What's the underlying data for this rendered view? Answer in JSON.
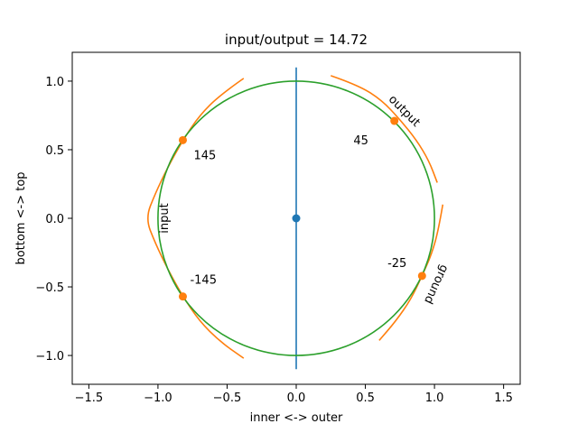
{
  "chart_data": {
    "type": "line",
    "title": "input/output =  14.72",
    "xlabel": "inner <-> outer",
    "ylabel": "bottom <-> top",
    "xlim": [
      -1.62,
      1.62
    ],
    "ylim": [
      -1.21,
      1.21
    ],
    "xticks": [
      -1.5,
      -1.0,
      -0.5,
      0.0,
      0.5,
      1.0,
      1.5
    ],
    "xtick_labels": [
      "−1.5",
      "−1.0",
      "−0.5",
      "0.0",
      "0.5",
      "1.0",
      "1.5"
    ],
    "yticks": [
      -1.0,
      -0.5,
      0.0,
      0.5,
      1.0
    ],
    "ytick_labels": [
      "−1.0",
      "−0.5",
      "0.0",
      "0.5",
      "1.0"
    ],
    "grid": false,
    "colors": {
      "axis_line": "#1f77b4",
      "center_point": "#1f77b4",
      "arcs": "#ff7f0e",
      "markers": "#ff7f0e",
      "circle": "#2ca02c"
    },
    "vertical_line": {
      "x": 0.0,
      "y": [
        -1.1,
        1.1
      ]
    },
    "center_point": {
      "x": 0.0,
      "y": 0.0
    },
    "circle": {
      "cx": 0.0,
      "cy": 0.0,
      "r": 1.0
    },
    "markers": [
      {
        "x": 0.71,
        "y": 0.71,
        "angle": 45,
        "label": "45"
      },
      {
        "x": -0.82,
        "y": 0.57,
        "angle": 145,
        "label": "145"
      },
      {
        "x": -0.82,
        "y": -0.57,
        "angle": -145,
        "label": "-145"
      },
      {
        "x": 0.91,
        "y": -0.42,
        "angle": -25,
        "label": "-25"
      }
    ],
    "arcs": [
      {
        "points": [
          [
            0.25,
            1.04
          ],
          [
            0.45,
            0.97
          ],
          [
            0.62,
            0.86
          ],
          [
            0.75,
            0.72
          ],
          [
            0.87,
            0.57
          ],
          [
            0.96,
            0.42
          ],
          [
            1.02,
            0.26
          ]
        ]
      },
      {
        "points": [
          [
            -0.38,
            1.02
          ],
          [
            -0.55,
            0.9
          ],
          [
            -0.7,
            0.75
          ],
          [
            -0.82,
            0.57
          ],
          [
            -0.93,
            0.37
          ],
          [
            -1.02,
            0.18
          ],
          [
            -1.09,
            0.0
          ],
          [
            -1.02,
            -0.18
          ],
          [
            -0.93,
            -0.37
          ],
          [
            -0.82,
            -0.57
          ],
          [
            -0.7,
            -0.75
          ],
          [
            -0.55,
            -0.9
          ],
          [
            -0.38,
            -1.02
          ]
        ]
      },
      {
        "points": [
          [
            1.06,
            0.1
          ],
          [
            1.03,
            -0.08
          ],
          [
            0.98,
            -0.26
          ],
          [
            0.91,
            -0.42
          ],
          [
            0.83,
            -0.59
          ],
          [
            0.72,
            -0.75
          ],
          [
            0.6,
            -0.89
          ]
        ]
      }
    ],
    "annotations": [
      {
        "text": "input",
        "x": -0.95,
        "y": 0.0,
        "rotation": -90
      },
      {
        "text": "output",
        "x": 0.78,
        "y": 0.78,
        "rotation": 45
      },
      {
        "text": "ground",
        "x": 1.01,
        "y": -0.48,
        "rotation": 115
      }
    ]
  }
}
